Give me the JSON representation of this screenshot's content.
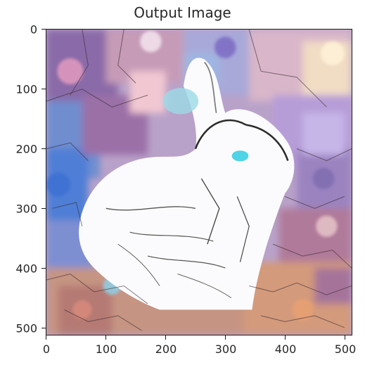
{
  "figure": {
    "title": "Output Image",
    "image_description_icon": "stylized-rabbit-image",
    "x_ticks": [
      "0",
      "100",
      "200",
      "300",
      "400",
      "500"
    ],
    "y_ticks": [
      "0",
      "100",
      "200",
      "300",
      "400",
      "500"
    ],
    "x_tick_values": [
      0,
      100,
      200,
      300,
      400,
      500
    ],
    "y_tick_values": [
      0,
      100,
      200,
      300,
      400,
      500
    ],
    "extent": [
      0,
      512,
      512,
      0
    ]
  }
}
